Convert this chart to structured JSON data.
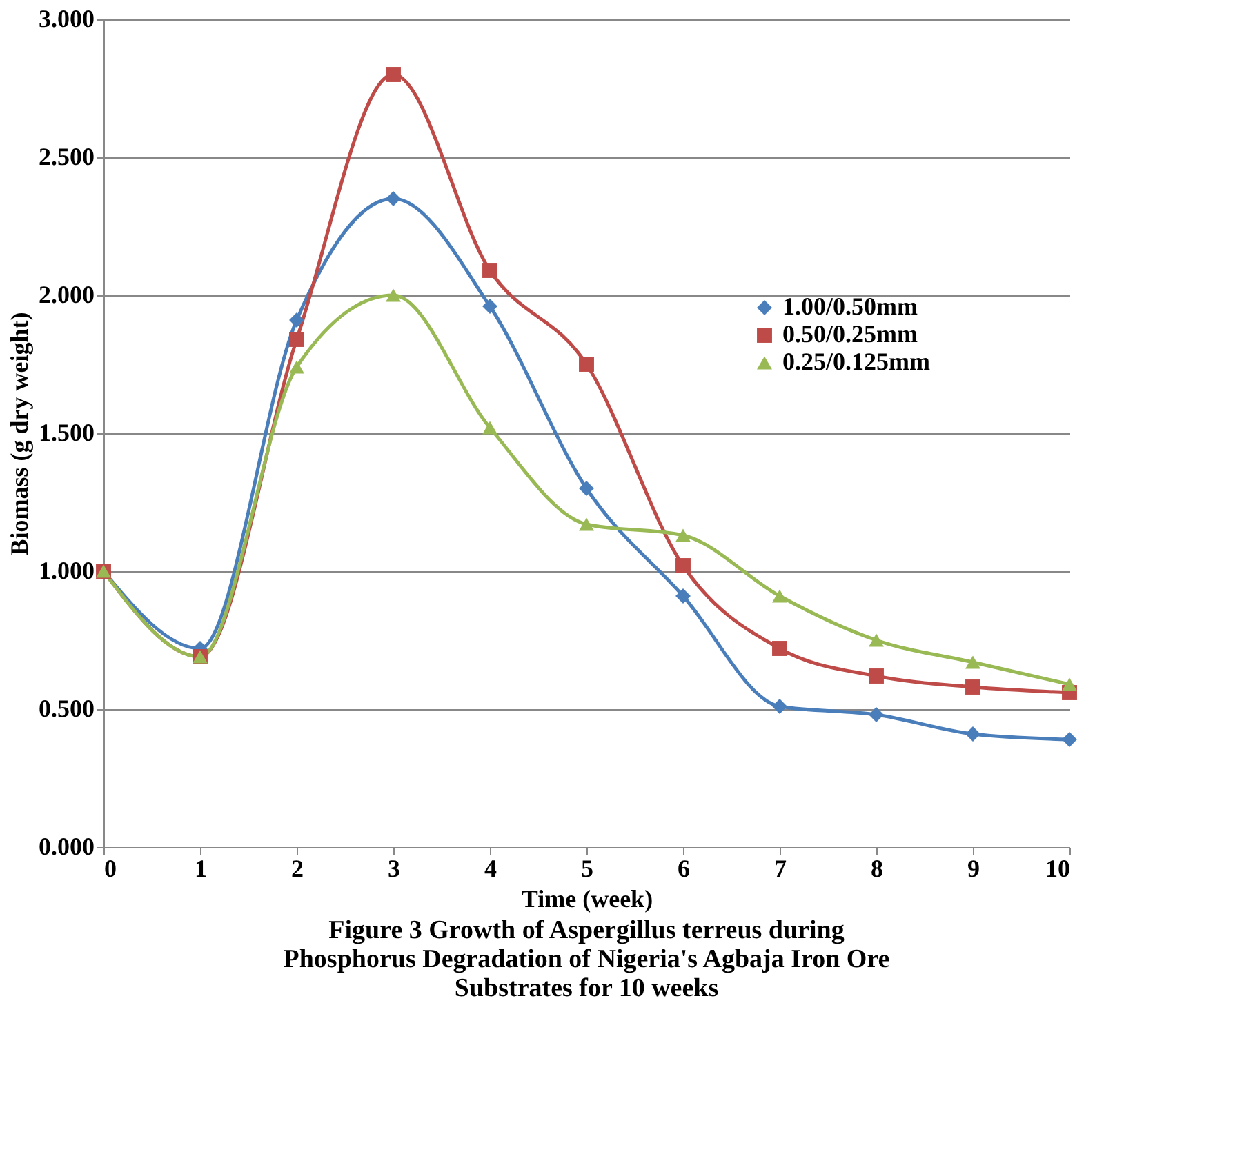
{
  "chart_data": {
    "type": "line",
    "title": "Figure 3 Growth of Aspergillus terreus during Phosphorus Degradation of Nigeria's Agbaja Iron Ore Substrates for 10 weeks",
    "xlabel": "Time (week)",
    "ylabel": "Biomass (g dry weight)",
    "x": [
      0,
      1,
      2,
      3,
      4,
      5,
      6,
      7,
      8,
      9,
      10
    ],
    "series": [
      {
        "name": "1.00/0.50mm",
        "color": "#4a7ebb",
        "marker": "diamond",
        "values": [
          1.0,
          0.72,
          1.91,
          2.35,
          1.96,
          1.3,
          0.91,
          0.51,
          0.48,
          0.41,
          0.39
        ]
      },
      {
        "name": "0.50/0.25mm",
        "color": "#be4b48",
        "marker": "square",
        "values": [
          1.0,
          0.69,
          1.84,
          2.8,
          2.09,
          1.75,
          1.02,
          0.72,
          0.62,
          0.58,
          0.56
        ]
      },
      {
        "name": "0.25/0.125mm",
        "color": "#98b954",
        "marker": "triangle",
        "values": [
          1.0,
          0.69,
          1.74,
          2.0,
          1.52,
          1.17,
          1.13,
          0.91,
          0.75,
          0.67,
          0.59
        ]
      }
    ],
    "xlim": [
      0,
      10
    ],
    "xticks": [
      0,
      1,
      2,
      3,
      4,
      5,
      6,
      7,
      8,
      9,
      10
    ],
    "ylim": [
      0,
      3
    ],
    "yticks": [
      {
        "value": 0,
        "label": "0.000"
      },
      {
        "value": 0.5,
        "label": "0.500"
      },
      {
        "value": 1,
        "label": "1.000"
      },
      {
        "value": 1.5,
        "label": "1.500"
      },
      {
        "value": 2,
        "label": "2.000"
      },
      {
        "value": 2.5,
        "label": "2.500"
      },
      {
        "value": 3,
        "label": "3.000"
      }
    ],
    "grid": "y",
    "legend": "right",
    "line_style": "solid"
  }
}
